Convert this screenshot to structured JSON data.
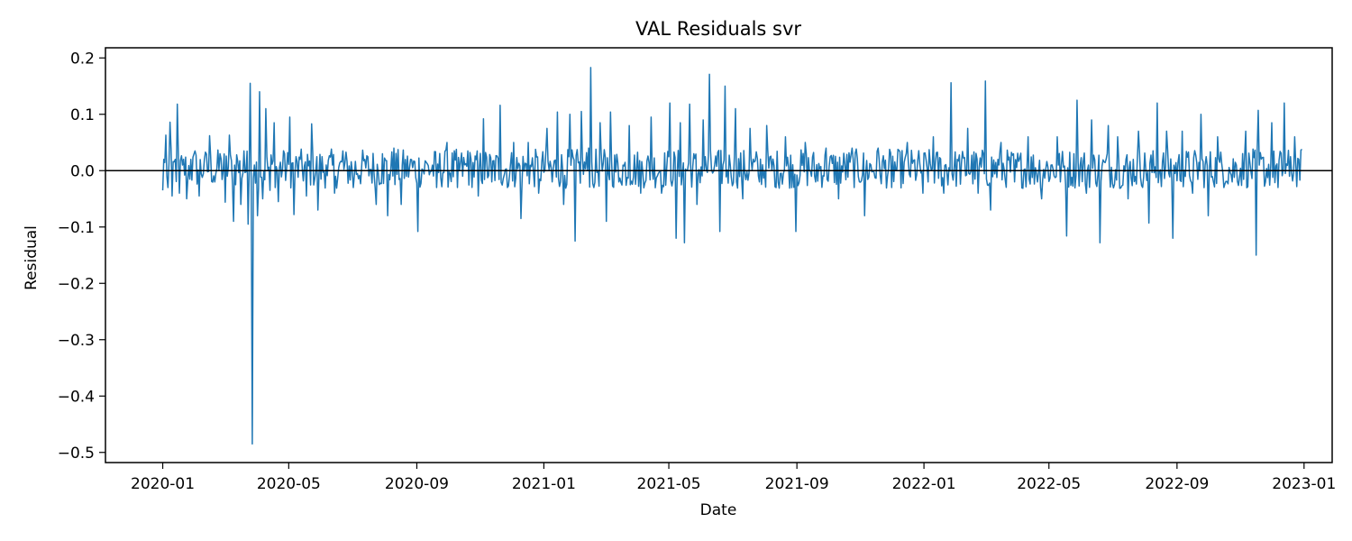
{
  "chart_data": {
    "type": "line",
    "title": "VAL Residuals svr",
    "xlabel": "Date",
    "ylabel": "Residual",
    "x_start": "2020-01-01",
    "x_end": "2022-12-30",
    "xlim": [
      "2019-11-07",
      "2023-01-28"
    ],
    "ylim": [
      -0.518,
      0.218
    ],
    "xticks": [
      "2020-01",
      "2020-05",
      "2020-09",
      "2021-01",
      "2021-05",
      "2021-09",
      "2022-01",
      "2022-05",
      "2022-09",
      "2023-01"
    ],
    "xtick_dates": [
      "2020-01-01",
      "2020-05-01",
      "2020-09-01",
      "2021-01-01",
      "2021-05-01",
      "2021-09-01",
      "2022-01-01",
      "2022-05-01",
      "2022-09-01",
      "2023-01-01"
    ],
    "yticks": [
      0.2,
      0.1,
      0.0,
      -0.1,
      -0.2,
      -0.3,
      -0.4,
      -0.5
    ],
    "ytick_labels": [
      "0.2",
      "0.1",
      "0.0",
      "−0.1",
      "−0.2",
      "−0.3",
      "−0.4",
      "−0.5"
    ],
    "reference_line": 0,
    "grid": false,
    "legend": "none",
    "series": [
      {
        "color": "#1f77b4",
        "points": [
          [
            "2020-01-01",
            -0.035
          ],
          [
            "2020-01-02",
            0.02
          ],
          [
            "2020-01-04",
            0.063
          ],
          [
            "2020-01-06",
            -0.03
          ],
          [
            "2020-01-08",
            0.086
          ],
          [
            "2020-01-10",
            -0.045
          ],
          [
            "2020-01-13",
            0.02
          ],
          [
            "2020-01-15",
            0.118
          ],
          [
            "2020-01-17",
            -0.04
          ],
          [
            "2020-01-20",
            0.01
          ],
          [
            "2020-01-24",
            -0.05
          ],
          [
            "2020-01-28",
            0.02
          ],
          [
            "2020-02-01",
            0.035
          ],
          [
            "2020-02-05",
            -0.045
          ],
          [
            "2020-02-10",
            0.02
          ],
          [
            "2020-02-15",
            0.062
          ],
          [
            "2020-02-20",
            -0.02
          ],
          [
            "2020-02-25",
            0.03
          ],
          [
            "2020-03-01",
            -0.056
          ],
          [
            "2020-03-05",
            0.063
          ],
          [
            "2020-03-09",
            -0.09
          ],
          [
            "2020-03-12",
            0.028
          ],
          [
            "2020-03-16",
            -0.06
          ],
          [
            "2020-03-19",
            0.035
          ],
          [
            "2020-03-23",
            -0.095
          ],
          [
            "2020-03-25",
            0.155
          ],
          [
            "2020-03-27",
            -0.485
          ],
          [
            "2020-03-29",
            0.01
          ],
          [
            "2020-04-01",
            -0.08
          ],
          [
            "2020-04-03",
            0.14
          ],
          [
            "2020-04-06",
            -0.05
          ],
          [
            "2020-04-09",
            0.11
          ],
          [
            "2020-04-13",
            -0.035
          ],
          [
            "2020-04-17",
            0.085
          ],
          [
            "2020-04-21",
            -0.055
          ],
          [
            "2020-04-27",
            0.03
          ],
          [
            "2020-05-02",
            0.095
          ],
          [
            "2020-05-06",
            -0.078
          ],
          [
            "2020-05-12",
            0.02
          ],
          [
            "2020-05-18",
            -0.045
          ],
          [
            "2020-05-23",
            0.083
          ],
          [
            "2020-05-29",
            -0.07
          ],
          [
            "2020-06-06",
            0.01
          ],
          [
            "2020-06-14",
            -0.04
          ],
          [
            "2020-06-22",
            0.035
          ],
          [
            "2020-07-02",
            -0.03
          ],
          [
            "2020-07-13",
            0.02
          ],
          [
            "2020-07-24",
            -0.06
          ],
          [
            "2020-07-30",
            0.03
          ],
          [
            "2020-08-04",
            -0.08
          ],
          [
            "2020-08-10",
            0.04
          ],
          [
            "2020-08-17",
            -0.06
          ],
          [
            "2020-08-26",
            0.02
          ],
          [
            "2020-09-02",
            -0.108
          ],
          [
            "2020-09-10",
            0.015
          ],
          [
            "2020-09-20",
            -0.03
          ],
          [
            "2020-09-30",
            0.05
          ],
          [
            "2020-10-10",
            -0.03
          ],
          [
            "2020-10-20",
            0.035
          ],
          [
            "2020-10-30",
            -0.045
          ],
          [
            "2020-11-04",
            0.092
          ],
          [
            "2020-11-12",
            -0.02
          ],
          [
            "2020-11-20",
            0.116
          ],
          [
            "2020-11-27",
            -0.03
          ],
          [
            "2020-12-03",
            0.05
          ],
          [
            "2020-12-10",
            -0.085
          ],
          [
            "2020-12-17",
            0.05
          ],
          [
            "2020-12-27",
            -0.04
          ],
          [
            "2021-01-04",
            0.075
          ],
          [
            "2021-01-09",
            -0.02
          ],
          [
            "2021-01-14",
            0.104
          ],
          [
            "2021-01-20",
            -0.06
          ],
          [
            "2021-01-26",
            0.1
          ],
          [
            "2021-01-31",
            -0.125
          ],
          [
            "2021-02-06",
            0.105
          ],
          [
            "2021-02-13",
            0.04
          ],
          [
            "2021-02-15",
            0.183
          ],
          [
            "2021-02-18",
            -0.03
          ],
          [
            "2021-02-24",
            0.085
          ],
          [
            "2021-03-02",
            -0.09
          ],
          [
            "2021-03-06",
            0.104
          ],
          [
            "2021-03-14",
            -0.02
          ],
          [
            "2021-03-24",
            0.08
          ],
          [
            "2021-04-04",
            -0.04
          ],
          [
            "2021-04-14",
            0.095
          ],
          [
            "2021-04-24",
            -0.04
          ],
          [
            "2021-05-02",
            0.12
          ],
          [
            "2021-05-08",
            -0.12
          ],
          [
            "2021-05-12",
            0.085
          ],
          [
            "2021-05-16",
            -0.128
          ],
          [
            "2021-05-21",
            0.118
          ],
          [
            "2021-05-28",
            -0.06
          ],
          [
            "2021-06-03",
            0.09
          ],
          [
            "2021-06-09",
            0.171
          ],
          [
            "2021-06-14",
            0.01
          ],
          [
            "2021-06-19",
            -0.108
          ],
          [
            "2021-06-24",
            0.15
          ],
          [
            "2021-06-29",
            0.01
          ],
          [
            "2021-07-04",
            0.11
          ],
          [
            "2021-07-11",
            -0.05
          ],
          [
            "2021-07-18",
            0.075
          ],
          [
            "2021-07-27",
            -0.02
          ],
          [
            "2021-08-03",
            0.08
          ],
          [
            "2021-08-12",
            -0.03
          ],
          [
            "2021-08-21",
            0.06
          ],
          [
            "2021-08-31",
            -0.108
          ],
          [
            "2021-09-09",
            0.05
          ],
          [
            "2021-09-19",
            -0.02
          ],
          [
            "2021-09-29",
            0.04
          ],
          [
            "2021-10-11",
            -0.05
          ],
          [
            "2021-10-24",
            0.04
          ],
          [
            "2021-11-05",
            -0.08
          ],
          [
            "2021-11-18",
            0.04
          ],
          [
            "2021-12-01",
            -0.03
          ],
          [
            "2021-12-16",
            0.05
          ],
          [
            "2021-12-31",
            -0.04
          ],
          [
            "2022-01-10",
            0.06
          ],
          [
            "2022-01-20",
            -0.04
          ],
          [
            "2022-01-27",
            0.156
          ],
          [
            "2022-02-02",
            0.02
          ],
          [
            "2022-02-12",
            0.075
          ],
          [
            "2022-02-22",
            -0.04
          ],
          [
            "2022-03-01",
            0.159
          ],
          [
            "2022-03-06",
            -0.07
          ],
          [
            "2022-03-16",
            0.05
          ],
          [
            "2022-03-29",
            -0.02
          ],
          [
            "2022-04-11",
            0.06
          ],
          [
            "2022-04-24",
            -0.05
          ],
          [
            "2022-05-09",
            0.06
          ],
          [
            "2022-05-18",
            -0.116
          ],
          [
            "2022-05-28",
            0.125
          ],
          [
            "2022-06-06",
            -0.04
          ],
          [
            "2022-06-11",
            0.09
          ],
          [
            "2022-06-19",
            -0.128
          ],
          [
            "2022-06-27",
            0.08
          ],
          [
            "2022-07-06",
            0.06
          ],
          [
            "2022-07-16",
            -0.05
          ],
          [
            "2022-07-26",
            0.07
          ],
          [
            "2022-08-05",
            -0.093
          ],
          [
            "2022-08-13",
            0.12
          ],
          [
            "2022-08-22",
            0.07
          ],
          [
            "2022-08-28",
            -0.12
          ],
          [
            "2022-09-06",
            0.07
          ],
          [
            "2022-09-16",
            -0.04
          ],
          [
            "2022-09-24",
            0.1
          ],
          [
            "2022-10-01",
            -0.08
          ],
          [
            "2022-10-10",
            0.06
          ],
          [
            "2022-10-24",
            -0.02
          ],
          [
            "2022-11-06",
            0.07
          ],
          [
            "2022-11-16",
            -0.15
          ],
          [
            "2022-11-18",
            0.107
          ],
          [
            "2022-11-25",
            -0.02
          ],
          [
            "2022-12-01",
            0.085
          ],
          [
            "2022-12-07",
            -0.03
          ],
          [
            "2022-12-13",
            0.12
          ],
          [
            "2022-12-18",
            -0.01
          ],
          [
            "2022-12-23",
            0.06
          ],
          [
            "2022-12-27",
            0.02
          ],
          [
            "2022-12-30",
            0.038
          ]
        ]
      }
    ]
  }
}
